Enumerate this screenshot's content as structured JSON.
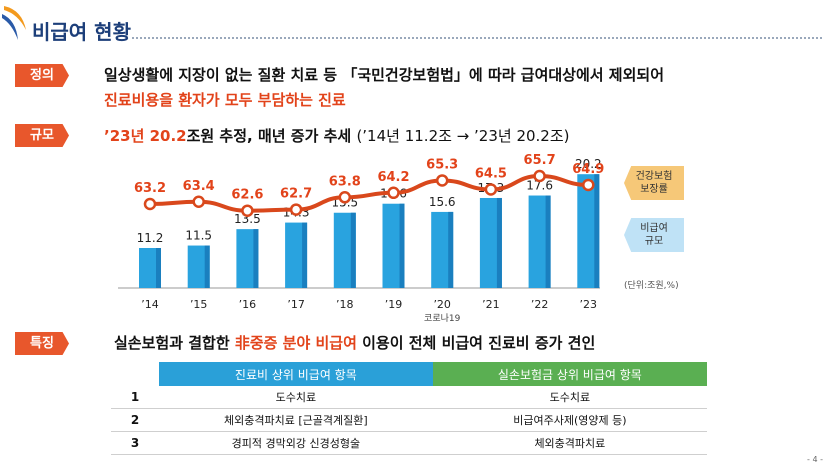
{
  "title": "비급여 현황",
  "sections": {
    "definition": {
      "tag": "정의",
      "line1": "일상생활에 지장이 없는 질환 치료 등 「국민건강보험법」에 따라 급여대상에서 제외되어",
      "line2": "진료비용을 환자가 모두 부담하는 진료"
    },
    "scale": {
      "tag": "규모",
      "headline_red": "’23년 20.2",
      "headline_rest": "조원 추정, 매년 증가 추세",
      "headline_paren": "(’14년 11.2조 → ’23년 20.2조)"
    },
    "feature": {
      "tag": "특징",
      "pre": "실손보험과 결합한 ",
      "red": "非중증 분야 비급여",
      "post": " 이용이 전체 비급여 진료비 증가 견인"
    }
  },
  "chart_data": {
    "type": "bar",
    "categories": [
      "’14",
      "’15",
      "’16",
      "’17",
      "’18",
      "’19",
      "’20",
      "’21",
      "’22",
      "’23"
    ],
    "category_notes": {
      "’20": "코로나19"
    },
    "series": [
      {
        "name": "비급여 규모",
        "type": "bar",
        "values": [
          11.2,
          11.5,
          13.5,
          14.3,
          15.5,
          16.6,
          15.6,
          17.3,
          17.6,
          20.2
        ],
        "color": "#29a3df"
      },
      {
        "name": "건강보험 보장률",
        "type": "line",
        "values": [
          63.2,
          63.4,
          62.6,
          62.7,
          63.8,
          64.2,
          65.3,
          64.5,
          65.7,
          64.9
        ],
        "color": "#d9481c"
      }
    ],
    "legend": {
      "line_label": "건강보험\n보장률",
      "bar_label": "비급여\n규모",
      "placement": "right"
    },
    "unit_note": "(단위:조원,%)"
  },
  "colors": {
    "accent_red": "#e2431a",
    "tag_orange": "#e8572c",
    "bar_blue": "#29a3df",
    "legend_orange": "#f6c878",
    "legend_blue": "#bfe2f6",
    "header_blue": "#2aa0d8",
    "header_green": "#5aaf52"
  },
  "table": {
    "headers": [
      "진료비 상위 비급여 항목",
      "실손보험금 상위 비급여 항목"
    ],
    "rows": [
      {
        "rank": "1",
        "a": "도수치료",
        "b": "도수치료"
      },
      {
        "rank": "2",
        "a": "체외충격파치료 [근골격계질환]",
        "b": "비급여주사제(영양제 등)"
      },
      {
        "rank": "3",
        "a": "경피적 경막외강 신경성형술",
        "b": "체외충격파치료"
      }
    ]
  },
  "page_number": "- 4 -"
}
